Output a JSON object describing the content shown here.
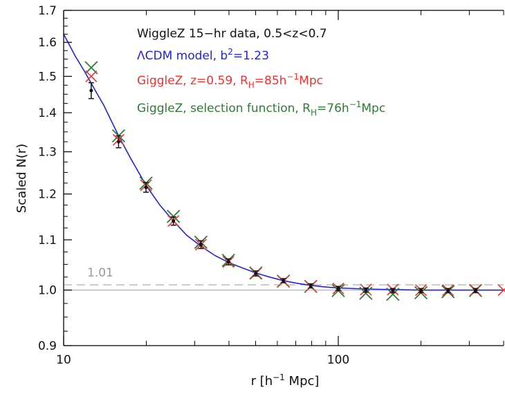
{
  "chart_data": {
    "type": "scatter",
    "xlabel_parts": {
      "pre": "r  [h",
      "sup": "−1",
      "post": " Mpc]"
    },
    "ylabel": "Scaled N(r)",
    "x_scale": "log",
    "y_scale": "log",
    "xlim": [
      10,
      400
    ],
    "ylim": [
      0.9,
      1.7
    ],
    "x_ticks": [
      10,
      100
    ],
    "x_tick_labels": [
      "10",
      "100"
    ],
    "y_ticks": [
      0.9,
      1.0,
      1.1,
      1.2,
      1.3,
      1.4,
      1.5,
      1.6,
      1.7
    ],
    "y_tick_labels": [
      "0.9",
      "1.0",
      "1.1",
      "1.2",
      "1.3",
      "1.4",
      "1.5",
      "1.6",
      "1.7"
    ],
    "reference_line": {
      "y": 1.0,
      "color": "#bbbbbb"
    },
    "threshold_line": {
      "y": 1.01,
      "label": "1.01",
      "color": "#bbbbbb"
    },
    "legend": [
      {
        "segments": [
          {
            "t": "WiggleZ 15−hr data, 0.5<z<0.7"
          }
        ],
        "color": "#111111"
      },
      {
        "segments": [
          {
            "t": "ΛCDM model, b"
          },
          {
            "t": "2",
            "sup": true
          },
          {
            "t": "=1.23"
          }
        ],
        "color": "#2222dd"
      },
      {
        "segments": [
          {
            "t": "GiggleZ, z=0.59, R"
          },
          {
            "t": "H",
            "sub": true
          },
          {
            "t": "=85h"
          },
          {
            "t": "−1",
            "sup": true
          },
          {
            "t": "Mpc"
          }
        ],
        "color": "#ee3333"
      },
      {
        "segments": [
          {
            "t": "GiggleZ, selection function, R"
          },
          {
            "t": "H",
            "sub": true
          },
          {
            "t": "=76h"
          },
          {
            "t": "−1",
            "sup": true
          },
          {
            "t": "Mpc"
          }
        ],
        "color": "#2e7d32"
      }
    ],
    "data_points": {
      "color": "#111111",
      "x": [
        12.6,
        15.85,
        19.95,
        25.1,
        31.6,
        39.8,
        50.1,
        63.1,
        79.4,
        100,
        126,
        158,
        200,
        251,
        316
      ],
      "y": [
        1.46,
        1.325,
        1.215,
        1.14,
        1.09,
        1.055,
        1.032,
        1.018,
        1.008,
        1.003,
        1.0,
        0.999,
        0.999,
        0.999,
        0.999
      ],
      "err": [
        0.022,
        0.015,
        0.011,
        0.009,
        0.008,
        0.006,
        0.005,
        0.004,
        0.004,
        0.004,
        0.004,
        0.004,
        0.004,
        0.004,
        0.004
      ]
    },
    "model_curve": {
      "name": "ΛCDM model, b²=1.23",
      "color": "#2222dd",
      "x": [
        10,
        11,
        12,
        12.6,
        14,
        15.85,
        17.5,
        19.95,
        22.4,
        25.1,
        28,
        31.6,
        35.5,
        39.8,
        44.7,
        50.1,
        56.2,
        63.1,
        70.8,
        79.4,
        89,
        100,
        126,
        158,
        200,
        251,
        316,
        400
      ],
      "y": [
        1.625,
        1.56,
        1.51,
        1.48,
        1.42,
        1.34,
        1.285,
        1.22,
        1.175,
        1.14,
        1.11,
        1.087,
        1.068,
        1.054,
        1.043,
        1.033,
        1.025,
        1.018,
        1.013,
        1.009,
        1.006,
        1.004,
        1.002,
        1.001,
        1.0,
        1.0,
        1.0,
        1.0
      ]
    },
    "giggle_z": {
      "color": "#ee3333",
      "x": [
        12.6,
        15.85,
        19.95,
        25.1,
        31.6,
        39.8,
        50.1,
        63.1,
        79.4,
        100,
        126,
        158,
        200,
        251,
        316,
        400
      ],
      "y": [
        1.5,
        1.33,
        1.22,
        1.14,
        1.09,
        1.055,
        1.032,
        1.017,
        1.007,
        1.003,
        1.001,
        1.001,
        1.0,
        1.0,
        1.0,
        1.0
      ]
    },
    "giggle_sel": {
      "color": "#2e7d32",
      "x": [
        12.6,
        15.85,
        19.95,
        25.1,
        31.6,
        39.8,
        50.1,
        63.1,
        79.4,
        100,
        126,
        158,
        200,
        251,
        316
      ],
      "y": [
        1.525,
        1.34,
        1.225,
        1.15,
        1.095,
        1.058,
        1.033,
        1.017,
        1.007,
        0.999,
        0.994,
        0.992,
        0.995,
        0.997,
        0.999
      ]
    }
  }
}
